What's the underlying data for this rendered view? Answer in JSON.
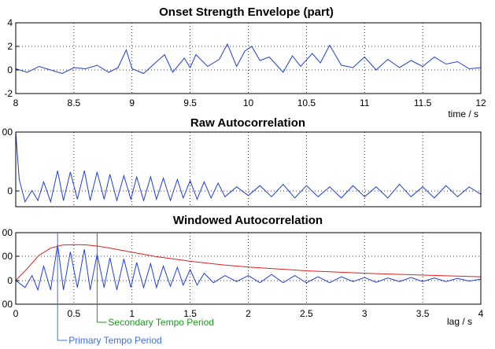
{
  "chart_data": [
    {
      "type": "line",
      "title": "Onset Strength Envelope (part)",
      "xlabel": "time / s",
      "ylabel": "",
      "xlim": [
        8,
        12
      ],
      "ylim": [
        -2,
        4
      ],
      "xticks": [
        "8",
        "8.5",
        "9",
        "9.5",
        "10",
        "10.5",
        "11",
        "11.5",
        "12"
      ],
      "yticks": [
        "-2",
        "0",
        "2",
        "4"
      ],
      "grid": true,
      "series": [
        {
          "color": "#1f3fd6",
          "x": [
            8.0,
            8.1,
            8.2,
            8.3,
            8.4,
            8.5,
            8.6,
            8.7,
            8.8,
            8.88,
            8.95,
            9.0,
            9.1,
            9.2,
            9.28,
            9.35,
            9.45,
            9.5,
            9.55,
            9.65,
            9.75,
            9.82,
            9.9,
            9.97,
            10.03,
            10.1,
            10.18,
            10.3,
            10.38,
            10.45,
            10.55,
            10.62,
            10.7,
            10.8,
            10.9,
            11.0,
            11.1,
            11.2,
            11.3,
            11.4,
            11.5,
            11.6,
            11.7,
            11.8,
            11.9,
            12.0
          ],
          "y": [
            0.1,
            -0.2,
            0.3,
            0.0,
            -0.3,
            0.2,
            0.1,
            0.4,
            -0.2,
            0.2,
            1.7,
            0.1,
            -0.3,
            0.6,
            1.3,
            -0.2,
            1.0,
            0.2,
            1.3,
            0.3,
            0.9,
            2.2,
            0.3,
            1.6,
            2.0,
            0.8,
            1.1,
            -0.2,
            1.2,
            0.3,
            1.4,
            0.6,
            2.1,
            0.4,
            0.2,
            1.1,
            0.0,
            0.9,
            0.2,
            0.8,
            0.3,
            1.1,
            0.5,
            0.7,
            0.1,
            0.2
          ]
        }
      ]
    },
    {
      "type": "line",
      "title": "Raw Autocorrelation",
      "xlabel": "",
      "ylabel": "",
      "xlim": [
        0,
        4
      ],
      "ylim": [
        -100,
        500
      ],
      "yticks": [
        "0",
        "00"
      ],
      "grid": true,
      "series": [
        {
          "color": "#1f3fd6",
          "x": [
            0.0,
            0.03,
            0.08,
            0.14,
            0.19,
            0.24,
            0.3,
            0.36,
            0.41,
            0.47,
            0.53,
            0.59,
            0.64,
            0.7,
            0.76,
            0.81,
            0.87,
            0.93,
            0.99,
            1.04,
            1.1,
            1.16,
            1.21,
            1.27,
            1.33,
            1.39,
            1.44,
            1.5,
            1.56,
            1.62,
            1.68,
            1.74,
            1.8,
            1.9,
            2.0,
            2.1,
            2.2,
            2.3,
            2.4,
            2.5,
            2.6,
            2.7,
            2.8,
            2.9,
            3.0,
            3.1,
            3.2,
            3.3,
            3.4,
            3.5,
            3.6,
            3.7,
            3.8,
            3.9,
            4.0
          ],
          "y": [
            500,
            120,
            -60,
            30,
            -50,
            100,
            -60,
            190,
            -50,
            180,
            -40,
            190,
            -50,
            180,
            -40,
            160,
            -50,
            150,
            -40,
            140,
            -50,
            140,
            -40,
            130,
            -50,
            120,
            -30,
            110,
            -40,
            100,
            -30,
            90,
            -20,
            60,
            -10,
            70,
            -20,
            80,
            -30,
            70,
            -20,
            60,
            -30,
            70,
            -20,
            60,
            -30,
            80,
            -20,
            60,
            -30,
            70,
            -20,
            60,
            0
          ]
        }
      ]
    },
    {
      "type": "line",
      "title": "Windowed Autocorrelation",
      "xlabel": "lag / s",
      "ylabel": "",
      "xlim": [
        0,
        4
      ],
      "ylim": [
        -100,
        200
      ],
      "xticks": [
        "0",
        "0.5",
        "1",
        "1.5",
        "2",
        "2.5",
        "3",
        "3.5",
        "4"
      ],
      "yticks": [
        "00",
        "00",
        "0",
        "00"
      ],
      "grid": true,
      "series": [
        {
          "color": "#1f3fd6",
          "x": [
            0.0,
            0.08,
            0.14,
            0.19,
            0.24,
            0.3,
            0.36,
            0.41,
            0.47,
            0.53,
            0.59,
            0.64,
            0.7,
            0.76,
            0.81,
            0.87,
            0.93,
            0.99,
            1.04,
            1.1,
            1.16,
            1.21,
            1.27,
            1.33,
            1.39,
            1.44,
            1.5,
            1.56,
            1.62,
            1.7,
            1.8,
            1.9,
            2.0,
            2.1,
            2.2,
            2.3,
            2.4,
            2.5,
            2.6,
            2.7,
            2.8,
            2.9,
            3.0,
            3.1,
            3.2,
            3.3,
            3.4,
            3.5,
            3.6,
            3.7,
            3.8,
            3.9,
            4.0
          ],
          "y": [
            0,
            -30,
            20,
            -40,
            60,
            -40,
            150,
            -40,
            120,
            -30,
            130,
            -40,
            110,
            -30,
            95,
            -40,
            90,
            -30,
            75,
            -30,
            70,
            -30,
            60,
            -25,
            55,
            -20,
            45,
            -20,
            30,
            -10,
            20,
            -5,
            20,
            -10,
            25,
            -10,
            20,
            -10,
            15,
            -10,
            15,
            -5,
            12,
            -8,
            10,
            -5,
            12,
            -5,
            10,
            -5,
            8,
            -3,
            5
          ]
        },
        {
          "color": "#e02020",
          "x": [
            0.0,
            0.1,
            0.2,
            0.3,
            0.4,
            0.5,
            0.6,
            0.7,
            0.8,
            1.0,
            1.2,
            1.5,
            1.8,
            2.0,
            2.5,
            3.0,
            3.5,
            4.0
          ],
          "y": [
            0,
            50,
            105,
            135,
            148,
            150,
            149,
            144,
            136,
            118,
            100,
            80,
            64,
            56,
            40,
            30,
            22,
            15
          ]
        }
      ],
      "annotations": [
        {
          "text": "Primary Tempo Period",
          "x": 0.36,
          "color": "#3b6fe0"
        },
        {
          "text": "Secondary Tempo Period",
          "x": 0.7,
          "color": "#1a9a1a"
        }
      ]
    }
  ]
}
